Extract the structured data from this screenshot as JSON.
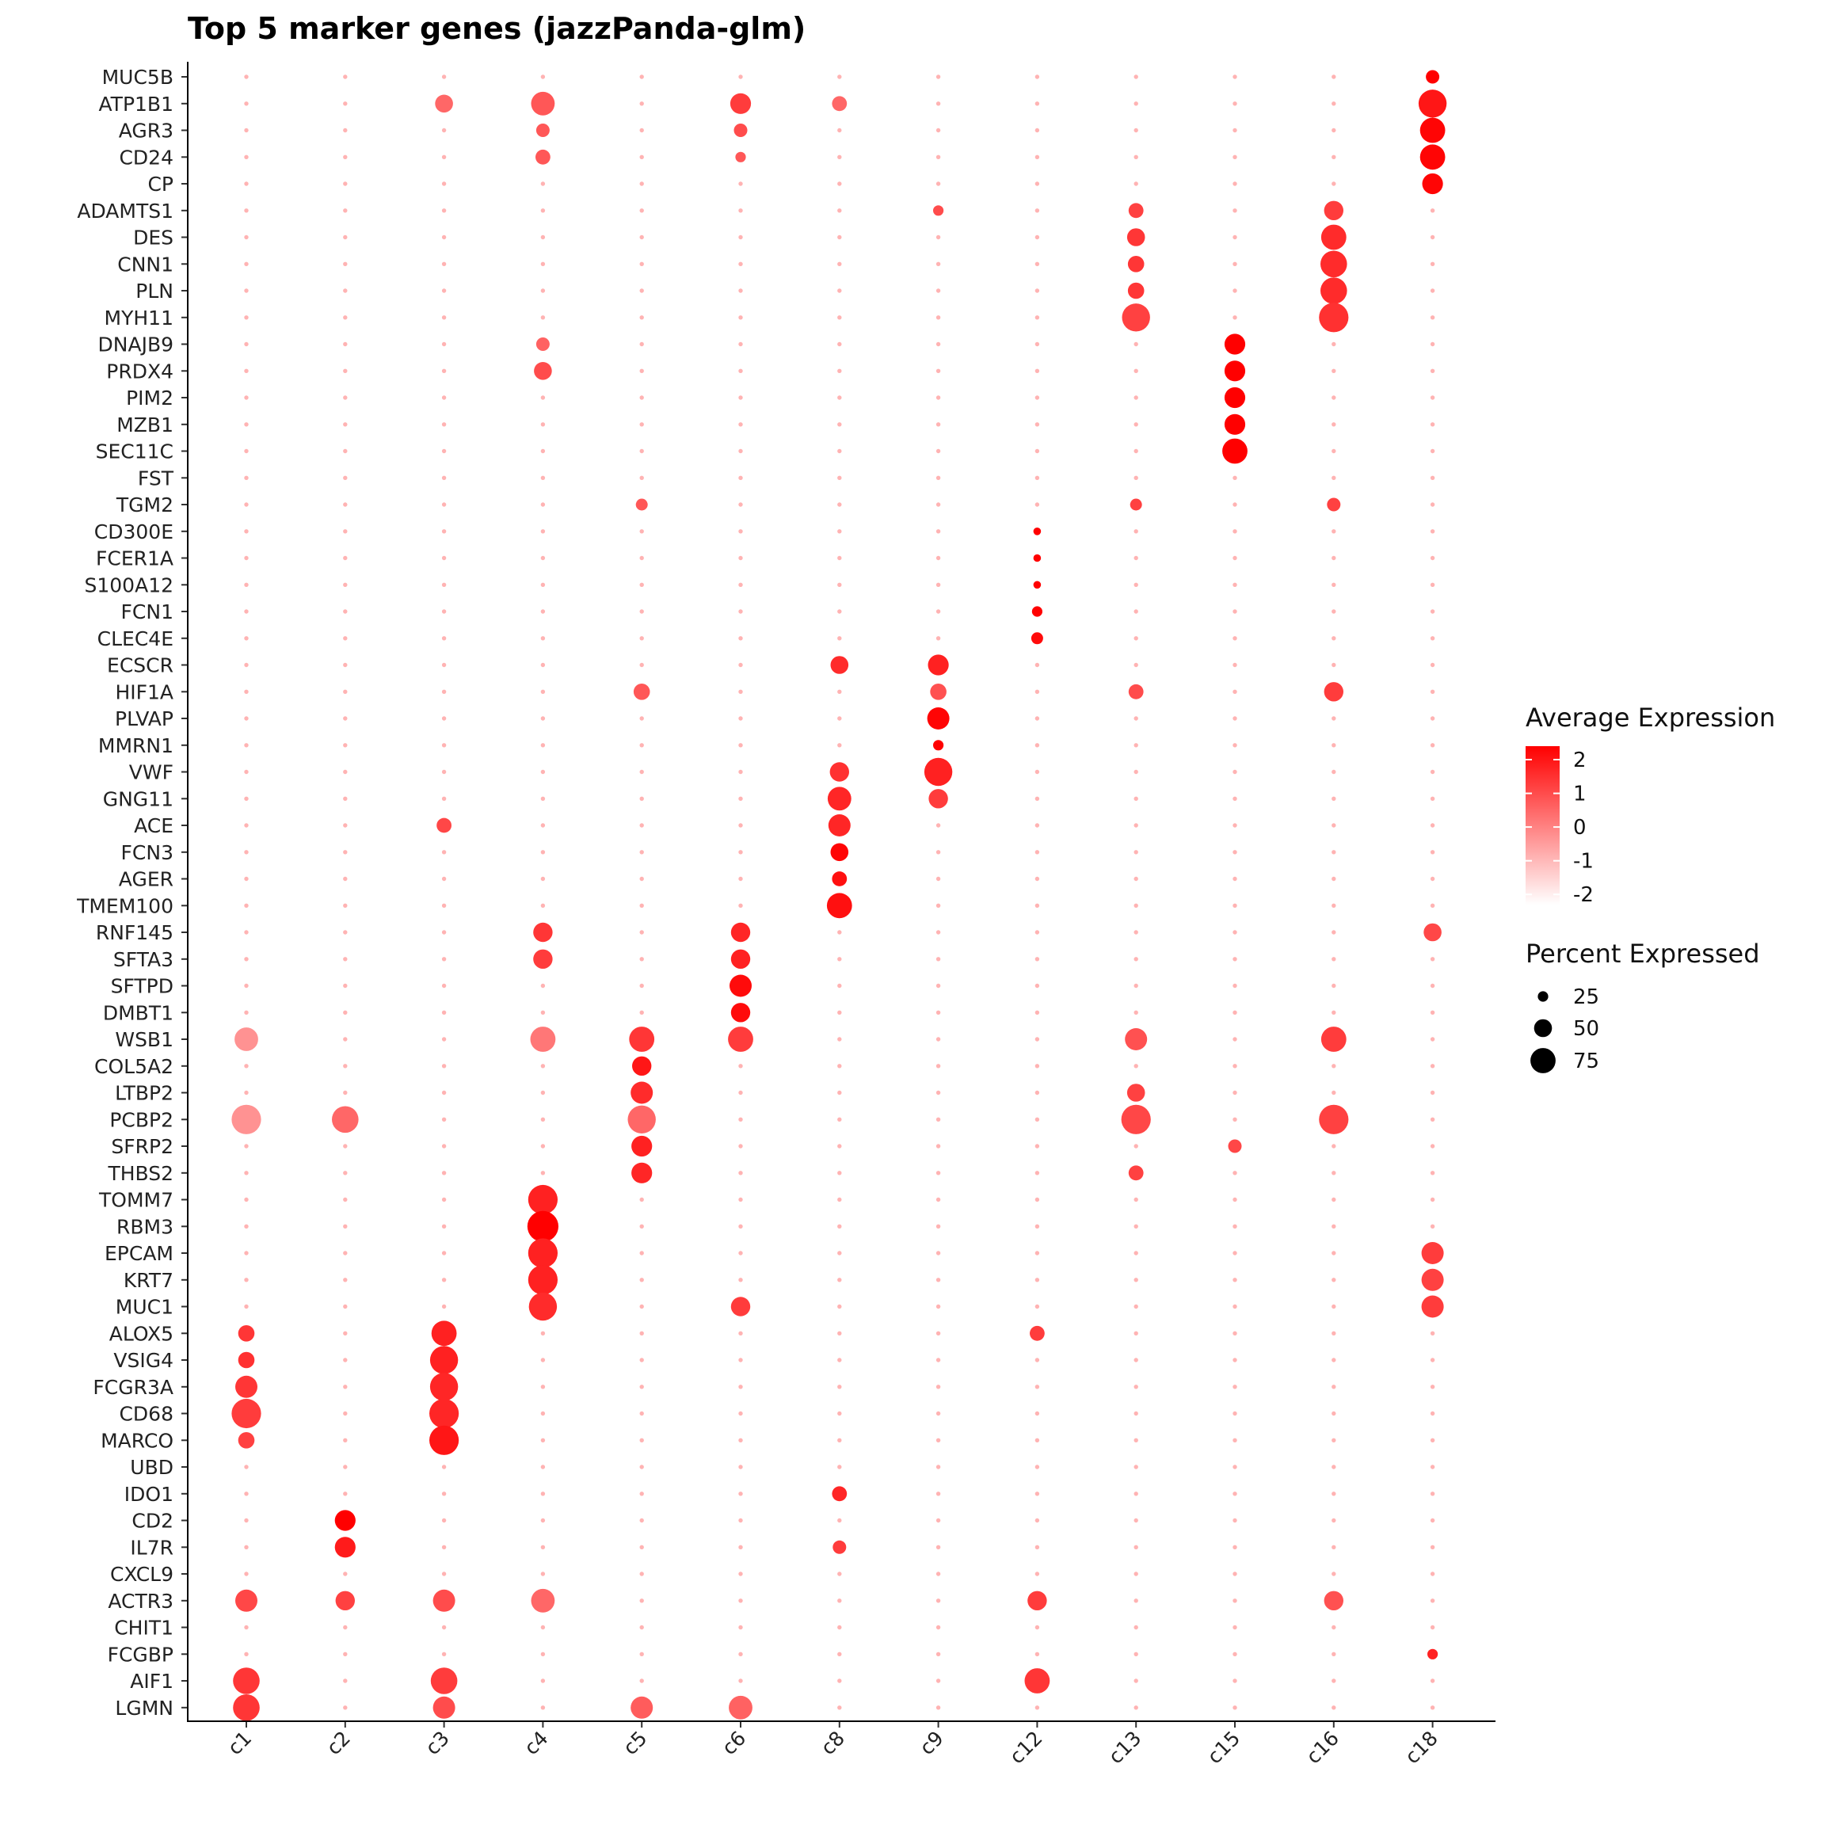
{
  "chart_data": {
    "type": "dotplot",
    "title": "Top 5 marker genes (jazzPanda-glm)",
    "xlabel": "",
    "ylabel": "",
    "clusters": [
      "c1",
      "c2",
      "c3",
      "c4",
      "c5",
      "c6",
      "c8",
      "c9",
      "c12",
      "c13",
      "c15",
      "c16",
      "c18"
    ],
    "genes": [
      "MUC5B",
      "ATP1B1",
      "AGR3",
      "CD24",
      "CP",
      "ADAMTS1",
      "DES",
      "CNN1",
      "PLN",
      "MYH11",
      "DNAJB9",
      "PRDX4",
      "PIM2",
      "MZB1",
      "SEC11C",
      "FST",
      "TGM2",
      "CD300E",
      "FCER1A",
      "S100A12",
      "FCN1",
      "CLEC4E",
      "ECSCR",
      "HIF1A",
      "PLVAP",
      "MMRN1",
      "VWF",
      "GNG11",
      "ACE",
      "FCN3",
      "AGER",
      "TMEM100",
      "RNF145",
      "SFTA3",
      "SFTPD",
      "DMBT1",
      "WSB1",
      "COL5A2",
      "LTBP2",
      "PCBP2",
      "SFRP2",
      "THBS2",
      "TOMM7",
      "RBM3",
      "EPCAM",
      "KRT7",
      "MUC1",
      "ALOX5",
      "VSIG4",
      "FCGR3A",
      "CD68",
      "MARCO",
      "UBD",
      "IDO1",
      "CD2",
      "IL7R",
      "CXCL9",
      "ACTR3",
      "CHIT1",
      "FCGBP",
      "AIF1",
      "LGMN"
    ],
    "highlights": [
      {
        "gene": "MUC5B",
        "cluster": "c18",
        "pct": 35,
        "expr": 2.4
      },
      {
        "gene": "ATP1B1",
        "cluster": "c18",
        "pct": 85,
        "expr": 2.0
      },
      {
        "gene": "AGR3",
        "cluster": "c18",
        "pct": 75,
        "expr": 2.3
      },
      {
        "gene": "CD24",
        "cluster": "c18",
        "pct": 75,
        "expr": 2.3
      },
      {
        "gene": "CP",
        "cluster": "c18",
        "pct": 60,
        "expr": 2.3
      },
      {
        "gene": "ATP1B1",
        "cluster": "c4",
        "pct": 70,
        "expr": 0.8
      },
      {
        "gene": "ATP1B1",
        "cluster": "c6",
        "pct": 60,
        "expr": 1.3
      },
      {
        "gene": "ATP1B1",
        "cluster": "c3",
        "pct": 50,
        "expr": 0.5
      },
      {
        "gene": "ATP1B1",
        "cluster": "c8",
        "pct": 40,
        "expr": 0.5
      },
      {
        "gene": "AGR3",
        "cluster": "c4",
        "pct": 35,
        "expr": 0.8
      },
      {
        "gene": "AGR3",
        "cluster": "c6",
        "pct": 35,
        "expr": 1.0
      },
      {
        "gene": "CD24",
        "cluster": "c4",
        "pct": 40,
        "expr": 0.8
      },
      {
        "gene": "CD24",
        "cluster": "c6",
        "pct": 25,
        "expr": 0.8
      },
      {
        "gene": "ADAMTS1",
        "cluster": "c13",
        "pct": 40,
        "expr": 1.2
      },
      {
        "gene": "ADAMTS1",
        "cluster": "c16",
        "pct": 55,
        "expr": 1.3
      },
      {
        "gene": "ADAMTS1",
        "cluster": "c9",
        "pct": 25,
        "expr": 1.0
      },
      {
        "gene": "DES",
        "cluster": "c13",
        "pct": 50,
        "expr": 1.4
      },
      {
        "gene": "DES",
        "cluster": "c16",
        "pct": 75,
        "expr": 1.6
      },
      {
        "gene": "CNN1",
        "cluster": "c13",
        "pct": 45,
        "expr": 1.4
      },
      {
        "gene": "CNN1",
        "cluster": "c16",
        "pct": 80,
        "expr": 1.6
      },
      {
        "gene": "PLN",
        "cluster": "c13",
        "pct": 45,
        "expr": 1.4
      },
      {
        "gene": "PLN",
        "cluster": "c16",
        "pct": 80,
        "expr": 1.6
      },
      {
        "gene": "MYH11",
        "cluster": "c13",
        "pct": 85,
        "expr": 1.2
      },
      {
        "gene": "MYH11",
        "cluster": "c16",
        "pct": 90,
        "expr": 1.5
      },
      {
        "gene": "DNAJB9",
        "cluster": "c15",
        "pct": 60,
        "expr": 2.4
      },
      {
        "gene": "DNAJB9",
        "cluster": "c4",
        "pct": 35,
        "expr": 0.6
      },
      {
        "gene": "PRDX4",
        "cluster": "c15",
        "pct": 60,
        "expr": 2.4
      },
      {
        "gene": "PRDX4",
        "cluster": "c4",
        "pct": 50,
        "expr": 1.0
      },
      {
        "gene": "PIM2",
        "cluster": "c15",
        "pct": 60,
        "expr": 2.4
      },
      {
        "gene": "MZB1",
        "cluster": "c15",
        "pct": 60,
        "expr": 2.4
      },
      {
        "gene": "SEC11C",
        "cluster": "c15",
        "pct": 75,
        "expr": 2.4
      },
      {
        "gene": "TGM2",
        "cluster": "c5",
        "pct": 30,
        "expr": 0.8
      },
      {
        "gene": "TGM2",
        "cluster": "c13",
        "pct": 30,
        "expr": 1.2
      },
      {
        "gene": "TGM2",
        "cluster": "c16",
        "pct": 35,
        "expr": 1.2
      },
      {
        "gene": "CD300E",
        "cluster": "c12",
        "pct": 15,
        "expr": 2.4
      },
      {
        "gene": "FCER1A",
        "cluster": "c12",
        "pct": 15,
        "expr": 2.4
      },
      {
        "gene": "S100A12",
        "cluster": "c12",
        "pct": 15,
        "expr": 2.4
      },
      {
        "gene": "FCN1",
        "cluster": "c12",
        "pct": 25,
        "expr": 2.4
      },
      {
        "gene": "CLEC4E",
        "cluster": "c12",
        "pct": 30,
        "expr": 2.2
      },
      {
        "gene": "ECSCR",
        "cluster": "c8",
        "pct": 50,
        "expr": 1.6
      },
      {
        "gene": "ECSCR",
        "cluster": "c9",
        "pct": 60,
        "expr": 1.8
      },
      {
        "gene": "HIF1A",
        "cluster": "c9",
        "pct": 45,
        "expr": 0.9
      },
      {
        "gene": "HIF1A",
        "cluster": "c16",
        "pct": 55,
        "expr": 1.3
      },
      {
        "gene": "HIF1A",
        "cluster": "c5",
        "pct": 45,
        "expr": 0.8
      },
      {
        "gene": "HIF1A",
        "cluster": "c13",
        "pct": 40,
        "expr": 1.0
      },
      {
        "gene": "PLVAP",
        "cluster": "c9",
        "pct": 65,
        "expr": 2.3
      },
      {
        "gene": "MMRN1",
        "cluster": "c9",
        "pct": 25,
        "expr": 2.4
      },
      {
        "gene": "VWF",
        "cluster": "c8",
        "pct": 55,
        "expr": 1.5
      },
      {
        "gene": "VWF",
        "cluster": "c9",
        "pct": 85,
        "expr": 1.8
      },
      {
        "gene": "GNG11",
        "cluster": "c8",
        "pct": 70,
        "expr": 1.7
      },
      {
        "gene": "GNG11",
        "cluster": "c9",
        "pct": 55,
        "expr": 1.3
      },
      {
        "gene": "ACE",
        "cluster": "c8",
        "pct": 65,
        "expr": 1.7
      },
      {
        "gene": "ACE",
        "cluster": "c3",
        "pct": 40,
        "expr": 1.1
      },
      {
        "gene": "FCN3",
        "cluster": "c8",
        "pct": 50,
        "expr": 2.3
      },
      {
        "gene": "AGER",
        "cluster": "c8",
        "pct": 40,
        "expr": 2.1
      },
      {
        "gene": "TMEM100",
        "cluster": "c8",
        "pct": 75,
        "expr": 2.1
      },
      {
        "gene": "RNF145",
        "cluster": "c4",
        "pct": 55,
        "expr": 1.4
      },
      {
        "gene": "RNF145",
        "cluster": "c6",
        "pct": 55,
        "expr": 1.7
      },
      {
        "gene": "RNF145",
        "cluster": "c18",
        "pct": 50,
        "expr": 1.1
      },
      {
        "gene": "SFTA3",
        "cluster": "c4",
        "pct": 55,
        "expr": 1.3
      },
      {
        "gene": "SFTA3",
        "cluster": "c6",
        "pct": 55,
        "expr": 1.8
      },
      {
        "gene": "SFTPD",
        "cluster": "c6",
        "pct": 65,
        "expr": 2.2
      },
      {
        "gene": "DMBT1",
        "cluster": "c6",
        "pct": 55,
        "expr": 2.2
      },
      {
        "gene": "WSB1",
        "cluster": "c5",
        "pct": 75,
        "expr": 1.4
      },
      {
        "gene": "WSB1",
        "cluster": "c6",
        "pct": 75,
        "expr": 1.3
      },
      {
        "gene": "WSB1",
        "cluster": "c16",
        "pct": 75,
        "expr": 1.3
      },
      {
        "gene": "WSB1",
        "cluster": "c13",
        "pct": 65,
        "expr": 0.9
      },
      {
        "gene": "WSB1",
        "cluster": "c1",
        "pct": 70,
        "expr": -0.3
      },
      {
        "gene": "WSB1",
        "cluster": "c4",
        "pct": 75,
        "expr": 0.2
      },
      {
        "gene": "COL5A2",
        "cluster": "c5",
        "pct": 55,
        "expr": 2.0
      },
      {
        "gene": "LTBP2",
        "cluster": "c5",
        "pct": 65,
        "expr": 1.6
      },
      {
        "gene": "LTBP2",
        "cluster": "c13",
        "pct": 50,
        "expr": 1.2
      },
      {
        "gene": "PCBP2",
        "cluster": "c5",
        "pct": 85,
        "expr": 0.5
      },
      {
        "gene": "PCBP2",
        "cluster": "c13",
        "pct": 90,
        "expr": 1.1
      },
      {
        "gene": "PCBP2",
        "cluster": "c16",
        "pct": 90,
        "expr": 1.2
      },
      {
        "gene": "PCBP2",
        "cluster": "c1",
        "pct": 90,
        "expr": -0.3
      },
      {
        "gene": "PCBP2",
        "cluster": "c2",
        "pct": 80,
        "expr": 0.5
      },
      {
        "gene": "SFRP2",
        "cluster": "c5",
        "pct": 60,
        "expr": 1.8
      },
      {
        "gene": "SFRP2",
        "cluster": "c15",
        "pct": 35,
        "expr": 1.1
      },
      {
        "gene": "THBS2",
        "cluster": "c5",
        "pct": 60,
        "expr": 1.7
      },
      {
        "gene": "THBS2",
        "cluster": "c13",
        "pct": 40,
        "expr": 1.2
      },
      {
        "gene": "TOMM7",
        "cluster": "c4",
        "pct": 90,
        "expr": 1.8
      },
      {
        "gene": "RBM3",
        "cluster": "c4",
        "pct": 95,
        "expr": 2.4
      },
      {
        "gene": "EPCAM",
        "cluster": "c4",
        "pct": 90,
        "expr": 1.8
      },
      {
        "gene": "EPCAM",
        "cluster": "c18",
        "pct": 65,
        "expr": 1.3
      },
      {
        "gene": "KRT7",
        "cluster": "c4",
        "pct": 90,
        "expr": 1.8
      },
      {
        "gene": "KRT7",
        "cluster": "c18",
        "pct": 65,
        "expr": 1.2
      },
      {
        "gene": "MUC1",
        "cluster": "c4",
        "pct": 85,
        "expr": 1.6
      },
      {
        "gene": "MUC1",
        "cluster": "c6",
        "pct": 55,
        "expr": 1.3
      },
      {
        "gene": "MUC1",
        "cluster": "c18",
        "pct": 65,
        "expr": 1.3
      },
      {
        "gene": "ALOX5",
        "cluster": "c3",
        "pct": 75,
        "expr": 1.8
      },
      {
        "gene": "ALOX5",
        "cluster": "c1",
        "pct": 45,
        "expr": 1.4
      },
      {
        "gene": "ALOX5",
        "cluster": "c12",
        "pct": 40,
        "expr": 1.3
      },
      {
        "gene": "VSIG4",
        "cluster": "c3",
        "pct": 85,
        "expr": 1.8
      },
      {
        "gene": "VSIG4",
        "cluster": "c1",
        "pct": 45,
        "expr": 1.5
      },
      {
        "gene": "FCGR3A",
        "cluster": "c3",
        "pct": 85,
        "expr": 1.7
      },
      {
        "gene": "FCGR3A",
        "cluster": "c1",
        "pct": 65,
        "expr": 1.4
      },
      {
        "gene": "CD68",
        "cluster": "c3",
        "pct": 90,
        "expr": 1.7
      },
      {
        "gene": "CD68",
        "cluster": "c1",
        "pct": 90,
        "expr": 1.3
      },
      {
        "gene": "MARCO",
        "cluster": "c3",
        "pct": 90,
        "expr": 2.0
      },
      {
        "gene": "MARCO",
        "cluster": "c1",
        "pct": 45,
        "expr": 1.2
      },
      {
        "gene": "IDO1",
        "cluster": "c8",
        "pct": 40,
        "expr": 1.7
      },
      {
        "gene": "CD2",
        "cluster": "c2",
        "pct": 60,
        "expr": 2.4
      },
      {
        "gene": "IL7R",
        "cluster": "c2",
        "pct": 60,
        "expr": 1.9
      },
      {
        "gene": "IL7R",
        "cluster": "c8",
        "pct": 35,
        "expr": 1.3
      },
      {
        "gene": "ACTR3",
        "cluster": "c1",
        "pct": 65,
        "expr": 1.1
      },
      {
        "gene": "ACTR3",
        "cluster": "c2",
        "pct": 55,
        "expr": 1.2
      },
      {
        "gene": "ACTR3",
        "cluster": "c3",
        "pct": 65,
        "expr": 1.0
      },
      {
        "gene": "ACTR3",
        "cluster": "c4",
        "pct": 70,
        "expr": 0.5
      },
      {
        "gene": "ACTR3",
        "cluster": "c12",
        "pct": 55,
        "expr": 1.3
      },
      {
        "gene": "ACTR3",
        "cluster": "c16",
        "pct": 55,
        "expr": 0.9
      },
      {
        "gene": "FCGBP",
        "cluster": "c18",
        "pct": 25,
        "expr": 1.8
      },
      {
        "gene": "AIF1",
        "cluster": "c1",
        "pct": 80,
        "expr": 1.4
      },
      {
        "gene": "AIF1",
        "cluster": "c3",
        "pct": 80,
        "expr": 1.3
      },
      {
        "gene": "AIF1",
        "cluster": "c12",
        "pct": 75,
        "expr": 1.4
      },
      {
        "gene": "LGMN",
        "cluster": "c1",
        "pct": 80,
        "expr": 1.4
      },
      {
        "gene": "LGMN",
        "cluster": "c3",
        "pct": 65,
        "expr": 1.0
      },
      {
        "gene": "LGMN",
        "cluster": "c6",
        "pct": 70,
        "expr": 0.6
      },
      {
        "gene": "LGMN",
        "cluster": "c5",
        "pct": 65,
        "expr": 0.7
      }
    ],
    "legend": {
      "color_title": "Average Expression",
      "color_range": [
        -2.3,
        2.4
      ],
      "color_ticks": [
        2,
        1,
        0,
        -1,
        -2
      ],
      "color_ticks_labels": [
        "2",
        "1",
        "0",
        "-1",
        "-2"
      ],
      "color_low": "#ffffff",
      "color_high": "#ff0000",
      "size_title": "Percent Expressed",
      "size_ticks": [
        25,
        50,
        75
      ],
      "size_ticks_labels": [
        "25",
        "50",
        "75"
      ]
    }
  }
}
